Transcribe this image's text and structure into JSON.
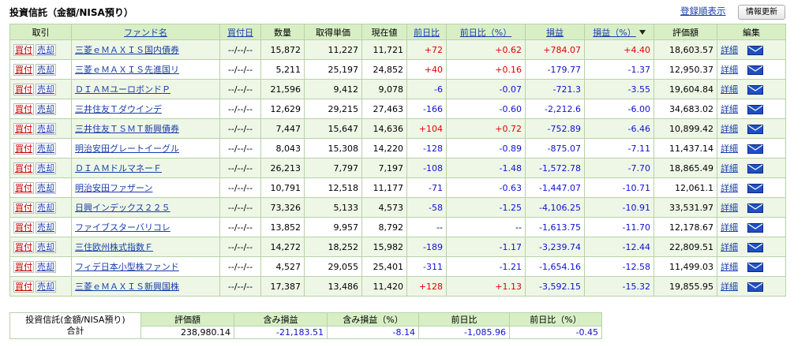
{
  "header": {
    "title": "投資信託（金額/NISA預り）",
    "sort_link": "登録順表示",
    "refresh_button": "情報更新"
  },
  "actions": {
    "buy": "買付",
    "sell": "売却",
    "detail": "詳細"
  },
  "table": {
    "columns": [
      {
        "label": "取引",
        "link": false
      },
      {
        "label": "ファンド名",
        "link": true
      },
      {
        "label": "買付日",
        "link": true
      },
      {
        "label": "数量",
        "link": false
      },
      {
        "label": "取得単価",
        "link": false
      },
      {
        "label": "現在値",
        "link": false
      },
      {
        "label": "前日比",
        "link": true
      },
      {
        "label": "前日比（%）",
        "link": true
      },
      {
        "label": "損益",
        "link": true
      },
      {
        "label": "損益（%）",
        "link": true,
        "sorted": true
      },
      {
        "label": "評価額",
        "link": false
      },
      {
        "label": "編集",
        "link": false
      }
    ],
    "rows": [
      [
        "三菱ｅＭＡＸＩＳ国内債券",
        "--/--/--",
        "15,872",
        "11,227",
        "11,721",
        "+72",
        "+0.62",
        "+784.07",
        "+4.40",
        "18,603.57"
      ],
      [
        "三菱ｅＭＡＸＩＳ先進国リ",
        "--/--/--",
        "5,211",
        "25,197",
        "24,852",
        "+40",
        "+0.16",
        "-179.77",
        "-1.37",
        "12,950.37"
      ],
      [
        "ＤＩＡＭユーロボンドＰ",
        "--/--/--",
        "21,596",
        "9,412",
        "9,078",
        "-6",
        "-0.07",
        "-721.3",
        "-3.55",
        "19,604.84"
      ],
      [
        "三井住友Ｔダウインデ",
        "--/--/--",
        "12,629",
        "29,215",
        "27,463",
        "-166",
        "-0.60",
        "-2,212.6",
        "-6.00",
        "34,683.02"
      ],
      [
        "三井住友ＴＳＭＴ新興債券",
        "--/--/--",
        "7,447",
        "15,647",
        "14,636",
        "+104",
        "+0.72",
        "-752.89",
        "-6.46",
        "10,899.42"
      ],
      [
        "明治安田グレートイーグル",
        "--/--/--",
        "8,043",
        "15,308",
        "14,220",
        "-128",
        "-0.89",
        "-875.07",
        "-7.11",
        "11,437.14"
      ],
      [
        "ＤＩＡＭドルマネーＦ",
        "--/--/--",
        "26,213",
        "7,797",
        "7,197",
        "-108",
        "-1.48",
        "-1,572.78",
        "-7.70",
        "18,865.49"
      ],
      [
        "明治安田ファザーン",
        "--/--/--",
        "10,791",
        "12,518",
        "11,177",
        "-71",
        "-0.63",
        "-1,447.07",
        "-10.71",
        "12,061.1"
      ],
      [
        "日興インデックス２２５",
        "--/--/--",
        "73,326",
        "5,133",
        "4,573",
        "-58",
        "-1.25",
        "-4,106.25",
        "-10.91",
        "33,531.97"
      ],
      [
        "ファイブスターバリコレ",
        "--/--/--",
        "13,852",
        "9,957",
        "8,792",
        "--",
        "--",
        "-1,613.75",
        "-11.70",
        "12,178.67"
      ],
      [
        "三住欧州株式指数Ｆ",
        "--/--/--",
        "14,272",
        "18,252",
        "15,982",
        "-189",
        "-1.17",
        "-3,239.74",
        "-12.44",
        "22,809.51"
      ],
      [
        "フィデ日本小型株ファンド",
        "--/--/--",
        "4,527",
        "29,055",
        "25,401",
        "-311",
        "-1.21",
        "-1,654.16",
        "-12.58",
        "11,499.03"
      ],
      [
        "三菱ｅＭＡＸＩＳ新興国株",
        "--/--/--",
        "17,387",
        "13,486",
        "11,420",
        "+128",
        "+1.13",
        "-3,592.15",
        "-15.32",
        "19,855.95"
      ]
    ]
  },
  "summary": {
    "label": [
      "投資信託(金額/NISA預り)",
      "合計"
    ],
    "columns": [
      "評価額",
      "含み損益",
      "含み損益（%）",
      "前日比",
      "前日比（%）"
    ],
    "values": [
      "238,980.14",
      "-21,183.51",
      "-8.14",
      "-1,085.96",
      "-0.45"
    ]
  }
}
